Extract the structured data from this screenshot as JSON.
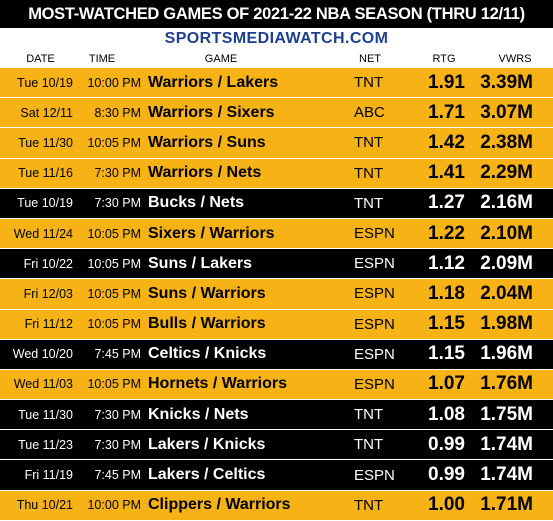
{
  "title": "MOST-WATCHED GAMES OF 2021-22 NBA SEASON (THRU 12/11)",
  "source": "SPORTSMEDIAWATCH.COM",
  "columns": {
    "date": "DATE",
    "time": "TIME",
    "game": "GAME",
    "net": "NET",
    "rtg": "RTG",
    "vwrs": "VWRS"
  },
  "colors": {
    "gold": "#f7b316",
    "black": "#000000",
    "source_blue": "#1f3f8f"
  },
  "rows": [
    {
      "date": "Tue 10/19",
      "time": "10:00 PM",
      "game": "Warriors / Lakers",
      "net": "TNT",
      "rtg": "1.91",
      "vwrs": "3.39M",
      "style": "gold"
    },
    {
      "date": "Sat 12/11",
      "time": "8:30 PM",
      "game": "Warriors / Sixers",
      "net": "ABC",
      "rtg": "1.71",
      "vwrs": "3.07M",
      "style": "gold"
    },
    {
      "date": "Tue 11/30",
      "time": "10:05 PM",
      "game": "Warriors / Suns",
      "net": "TNT",
      "rtg": "1.42",
      "vwrs": "2.38M",
      "style": "gold"
    },
    {
      "date": "Tue 11/16",
      "time": "7:30 PM",
      "game": "Warriors / Nets",
      "net": "TNT",
      "rtg": "1.41",
      "vwrs": "2.29M",
      "style": "gold"
    },
    {
      "date": "Tue 10/19",
      "time": "7:30 PM",
      "game": "Bucks / Nets",
      "net": "TNT",
      "rtg": "1.27",
      "vwrs": "2.16M",
      "style": "black"
    },
    {
      "date": "Wed 11/24",
      "time": "10:05 PM",
      "game": "Sixers / Warriors",
      "net": "ESPN",
      "rtg": "1.22",
      "vwrs": "2.10M",
      "style": "gold"
    },
    {
      "date": "Fri 10/22",
      "time": "10:05 PM",
      "game": "Suns / Lakers",
      "net": "ESPN",
      "rtg": "1.12",
      "vwrs": "2.09M",
      "style": "black"
    },
    {
      "date": "Fri 12/03",
      "time": "10:05 PM",
      "game": "Suns / Warriors",
      "net": "ESPN",
      "rtg": "1.18",
      "vwrs": "2.04M",
      "style": "gold"
    },
    {
      "date": "Fri 11/12",
      "time": "10:05 PM",
      "game": "Bulls / Warriors",
      "net": "ESPN",
      "rtg": "1.15",
      "vwrs": "1.98M",
      "style": "gold"
    },
    {
      "date": "Wed 10/20",
      "time": "7:45 PM",
      "game": "Celtics / Knicks",
      "net": "ESPN",
      "rtg": "1.15",
      "vwrs": "1.96M",
      "style": "black"
    },
    {
      "date": "Wed 11/03",
      "time": "10:05 PM",
      "game": "Hornets / Warriors",
      "net": "ESPN",
      "rtg": "1.07",
      "vwrs": "1.76M",
      "style": "gold"
    },
    {
      "date": "Tue 11/30",
      "time": "7:30 PM",
      "game": "Knicks / Nets",
      "net": "TNT",
      "rtg": "1.08",
      "vwrs": "1.75M",
      "style": "black"
    },
    {
      "date": "Tue 11/23",
      "time": "7:30 PM",
      "game": "Lakers / Knicks",
      "net": "TNT",
      "rtg": "0.99",
      "vwrs": "1.74M",
      "style": "black"
    },
    {
      "date": "Fri 11/19",
      "time": "7:45 PM",
      "game": "Lakers / Celtics",
      "net": "ESPN",
      "rtg": "0.99",
      "vwrs": "1.74M",
      "style": "black"
    },
    {
      "date": "Thu 10/21",
      "time": "10:00 PM",
      "game": "Clippers / Warriors",
      "net": "TNT",
      "rtg": "1.00",
      "vwrs": "1.71M",
      "style": "gold"
    }
  ]
}
